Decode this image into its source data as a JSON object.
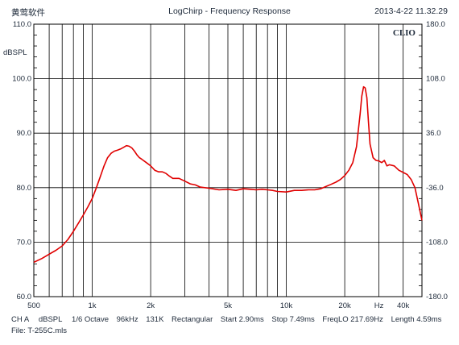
{
  "header": {
    "left": "黄莺软件",
    "center": "LogChirp - Frequency Response",
    "right": "2013-4-22 11.32.29"
  },
  "footer": {
    "line1": [
      "CH A",
      "dBSPL",
      "1/6 Octave",
      "96kHz",
      "131K",
      "Rectangular",
      "Start 2.90ms",
      "Stop 7.49ms",
      "FreqLO 217.69Hz",
      "Length 4.59ms"
    ],
    "line2": "File: T-255C.mls"
  },
  "chart_data": {
    "type": "line",
    "title": "LogChirp - Frequency Response",
    "brand": "CLIO",
    "ylabel": "dBSPL",
    "xlim": [
      500,
      50000
    ],
    "x_scale": "log",
    "ylim": [
      60,
      110
    ],
    "y_right_lim": [
      -180,
      180
    ],
    "grid": true,
    "x_ticks": [
      {
        "v": 500,
        "label": "500"
      },
      {
        "v": 1000,
        "label": "1k"
      },
      {
        "v": 2000,
        "label": "2k"
      },
      {
        "v": 5000,
        "label": "5k"
      },
      {
        "v": 10000,
        "label": "10k"
      },
      {
        "v": 20000,
        "label": "20k"
      },
      {
        "v": 40000,
        "label": "40k"
      }
    ],
    "x_unit_label": {
      "v": 30000,
      "label": "Hz"
    },
    "x_gridlines": [
      500,
      600,
      700,
      800,
      900,
      1000,
      2000,
      3000,
      4000,
      5000,
      6000,
      7000,
      8000,
      9000,
      10000,
      20000,
      30000,
      40000
    ],
    "y_ticks": [
      {
        "v": 60,
        "label": "60.0"
      },
      {
        "v": 70,
        "label": "70.0"
      },
      {
        "v": 80,
        "label": "80.0"
      },
      {
        "v": 90,
        "label": "90.0"
      },
      {
        "v": 100,
        "label": "100.0"
      },
      {
        "v": 110,
        "label": "110.0"
      }
    ],
    "y_right_ticks": [
      {
        "v": -180,
        "label": "-180.0"
      },
      {
        "v": -108,
        "label": "-108.0"
      },
      {
        "v": -36,
        "label": "-36.0"
      },
      {
        "v": 36,
        "label": "36.0"
      },
      {
        "v": 108,
        "label": "108.0"
      },
      {
        "v": 180,
        "label": "180.0"
      }
    ],
    "series": [
      {
        "color": "#e00000",
        "x": [
          500,
          550,
          600,
          650,
          700,
          750,
          800,
          850,
          900,
          950,
          1000,
          1050,
          1100,
          1150,
          1200,
          1250,
          1300,
          1350,
          1400,
          1450,
          1500,
          1550,
          1600,
          1650,
          1700,
          1750,
          1800,
          1900,
          2000,
          2100,
          2200,
          2300,
          2400,
          2500,
          2600,
          2800,
          3000,
          3200,
          3400,
          3600,
          3800,
          4000,
          4500,
          5000,
          5500,
          6000,
          6500,
          7000,
          7500,
          8000,
          8500,
          9000,
          10000,
          11000,
          12000,
          13000,
          14000,
          15000,
          16000,
          17000,
          18000,
          19000,
          20000,
          21000,
          22000,
          23000,
          24000,
          24500,
          25000,
          25500,
          26000,
          26500,
          27000,
          28000,
          29000,
          30000,
          31000,
          32000,
          33000,
          34000,
          36000,
          38000,
          40000,
          42000,
          44000,
          46000,
          48000,
          50000
        ],
        "y": [
          66.3,
          67.0,
          67.8,
          68.5,
          69.3,
          70.5,
          72.0,
          73.5,
          75.0,
          76.5,
          78.0,
          80.0,
          82.0,
          84.0,
          85.5,
          86.3,
          86.7,
          86.9,
          87.1,
          87.4,
          87.7,
          87.6,
          87.3,
          86.7,
          86.0,
          85.5,
          85.2,
          84.6,
          84.0,
          83.2,
          82.9,
          82.9,
          82.6,
          82.1,
          81.7,
          81.7,
          81.2,
          80.7,
          80.5,
          80.1,
          80.0,
          79.9,
          79.6,
          79.7,
          79.5,
          79.8,
          79.7,
          79.6,
          79.7,
          79.6,
          79.5,
          79.3,
          79.2,
          79.5,
          79.5,
          79.6,
          79.6,
          79.8,
          80.2,
          80.6,
          81.0,
          81.5,
          82.2,
          83.2,
          84.6,
          87.5,
          93.5,
          96.8,
          98.5,
          98.3,
          96.5,
          92.0,
          88.0,
          85.5,
          85.0,
          84.9,
          84.6,
          85.0,
          84.0,
          84.2,
          84.0,
          83.2,
          82.8,
          82.4,
          81.5,
          80.0,
          77.0,
          74.0
        ]
      }
    ]
  }
}
